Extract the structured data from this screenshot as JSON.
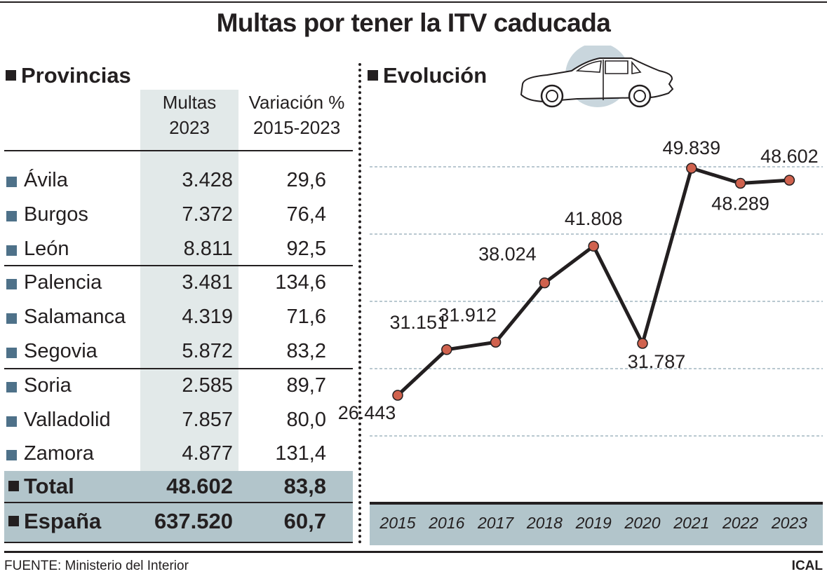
{
  "title": "Multas por tener la ITV caducada",
  "table": {
    "section_title": "Provincias",
    "headers": {
      "multas": [
        "Multas",
        "2023"
      ],
      "variacion": [
        "Variación %",
        "2015-2023"
      ]
    },
    "rows": [
      {
        "name": "Ávila",
        "multas": "3.428",
        "variacion": "29,6"
      },
      {
        "name": "Burgos",
        "multas": "7.372",
        "variacion": "76,4"
      },
      {
        "name": "León",
        "multas": "8.811",
        "variacion": "92,5"
      },
      {
        "name": "Palencia",
        "multas": "3.481",
        "variacion": "134,6"
      },
      {
        "name": "Salamanca",
        "multas": "4.319",
        "variacion": "71,6"
      },
      {
        "name": "Segovia",
        "multas": "5.872",
        "variacion": "83,2"
      },
      {
        "name": "Soria",
        "multas": "2.585",
        "variacion": "89,7"
      },
      {
        "name": "Valladolid",
        "multas": "7.857",
        "variacion": "80,0"
      },
      {
        "name": "Zamora",
        "multas": "4.877",
        "variacion": "131,4"
      }
    ],
    "total": {
      "name": "Total",
      "multas": "48.602",
      "variacion": "83,8"
    },
    "espana": {
      "name": "España",
      "multas": "637.520",
      "variacion": "60,7"
    }
  },
  "chart_data": {
    "type": "line",
    "title": "Evolución",
    "x": [
      "2015",
      "2016",
      "2017",
      "2018",
      "2019",
      "2020",
      "2021",
      "2022",
      "2023"
    ],
    "series": [
      {
        "values": [
          26443,
          31151,
          31912,
          38024,
          41808,
          31787,
          49839,
          48289,
          48602
        ]
      }
    ],
    "data_labels": [
      "26.443",
      "31.151",
      "31.912",
      "38.024",
      "41.808",
      "31.787",
      "49.839",
      "48.289",
      "48.602"
    ],
    "grid": "horizontal dashed",
    "colors": {
      "line": "#231f20",
      "marker": "#d0624e",
      "axis_band": "#b2c5cb"
    }
  },
  "source": "FUENTE: Ministerio del Interior",
  "brand": "ICAL",
  "colors": {
    "province_bullet": "#4e7189",
    "column_shade": "#e2e9e9",
    "total_bg": "#b2c5cb"
  }
}
